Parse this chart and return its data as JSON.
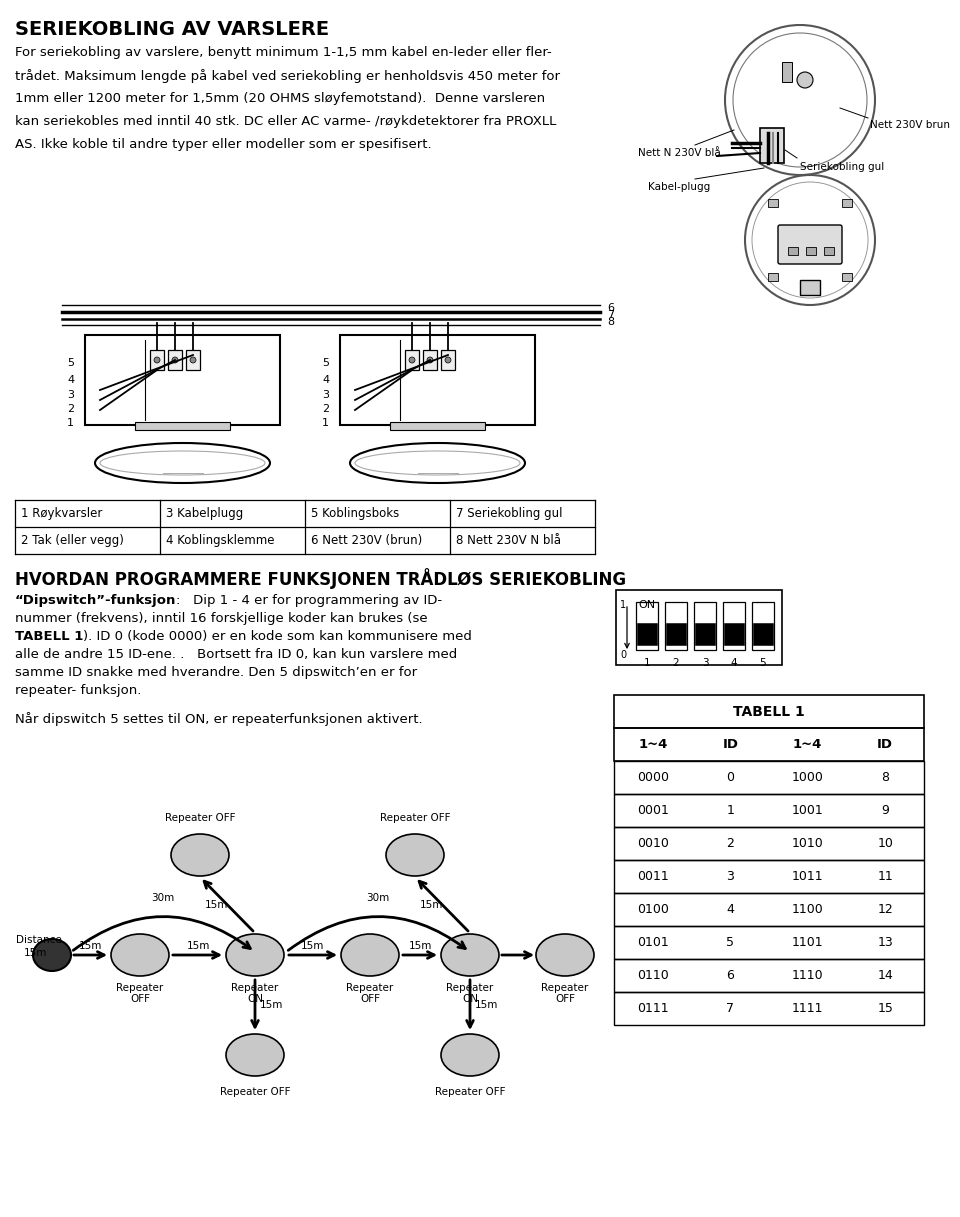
{
  "title": "SERIEKOBLING AV VARSLERE",
  "para1_lines": [
    "For seriekobling av varslere, benytt minimum 1-1,5 mm kabel en-leder eller fler-",
    "trådet. Maksimum lengde på kabel ved seriekobling er henholdsvis 450 meter for",
    "1mm eller 1200 meter for 1,5mm (20 OHMS sløyfemotstand).  Denne varsleren",
    "kan seriekobles med inntil 40 stk. DC eller AC varme- /røykdetektorer fra PROXLL",
    "AS. Ikke koble til andre typer eller modeller som er spesifisert."
  ],
  "legend_row1": [
    "1 Røykvarsler",
    "3 Kabelplugg",
    "5 Koblingsboks",
    "7 Seriekobling gul"
  ],
  "legend_row2": [
    "2 Tak (eller vegg)",
    "4 Koblingsklemme",
    "6 Nett 230V (brun)",
    "8 Nett 230V N blå"
  ],
  "section2_title": "HVORDAN PROGRAMMERE FUNKSJONEN TRÅDLØS SERIEKOBLING",
  "sec2_bold1": "“Dipswitch”-funksjon",
  "sec2_rest1": ":   Dip 1 - 4 er for programmering av ID-",
  "sec2_line2": "nummer (frekvens), inntil 16 forskjellige koder kan brukes (se",
  "sec2_bold3": "TABELL 1",
  "sec2_rest3": "). ID 0 (kode 0000) er en kode som kan kommunisere med",
  "sec2_line4": "alle de andre 15 ID-ene. .   Bortsett fra ID 0, kan kun varslere med",
  "sec2_line5": "samme ID snakke med hverandre. Den 5 dipswitch’en er for",
  "sec2_line6": "repeater- funksjon.",
  "sec2_line8": "Når dipswitch 5 settes til ON, er repeaterfunksjonen aktivert.",
  "table_title": "TABELL 1",
  "table_headers": [
    "1~4",
    "ID",
    "1~4",
    "ID"
  ],
  "table_rows": [
    [
      "0000",
      "0",
      "1000",
      "8"
    ],
    [
      "0001",
      "1",
      "1001",
      "9"
    ],
    [
      "0010",
      "2",
      "1010",
      "10"
    ],
    [
      "0011",
      "3",
      "1011",
      "11"
    ],
    [
      "0100",
      "4",
      "1100",
      "12"
    ],
    [
      "0101",
      "5",
      "1101",
      "13"
    ],
    [
      "0110",
      "6",
      "1110",
      "14"
    ],
    [
      "0111",
      "7",
      "1111",
      "15"
    ]
  ],
  "diag1_labels": [
    [
      "Nett N 230V blå",
      638,
      148,
      "left"
    ],
    [
      "Nett 230V brun",
      870,
      120,
      "left"
    ],
    [
      "Seriekobling gul",
      800,
      162,
      "left"
    ],
    [
      "Kabel-plugg",
      648,
      182,
      "left"
    ]
  ],
  "bg_color": "#ffffff"
}
